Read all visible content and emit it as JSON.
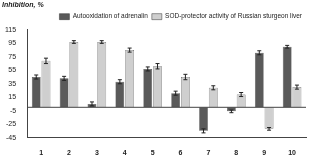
{
  "chart_data": {
    "type": "bar",
    "title": "Inhibition, %",
    "categories": [
      "1",
      "2",
      "3",
      "4",
      "5",
      "6",
      "7",
      "8",
      "9",
      "10"
    ],
    "series": [
      {
        "name": "Autooxidation of adrenalin",
        "color": "#5a5a5a",
        "values": [
          45,
          43,
          5,
          38,
          57,
          21,
          -35,
          -6,
          81,
          90
        ],
        "errors": [
          3,
          3,
          3,
          3,
          3,
          3,
          3,
          2,
          3,
          2
        ]
      },
      {
        "name": "SOD-protector activity of Russian sturgeon liver",
        "color": "#cfcfcf",
        "values": [
          69,
          97,
          97,
          85,
          61,
          45,
          29,
          19,
          -32,
          30
        ],
        "errors": [
          4,
          2,
          2,
          3,
          4,
          4,
          3,
          3,
          2,
          3
        ]
      }
    ],
    "ylim": [
      -45,
      115
    ],
    "yticks": [
      -45,
      -25,
      -5,
      15,
      35,
      55,
      75,
      95,
      115
    ],
    "grid": false,
    "legend": "top"
  }
}
